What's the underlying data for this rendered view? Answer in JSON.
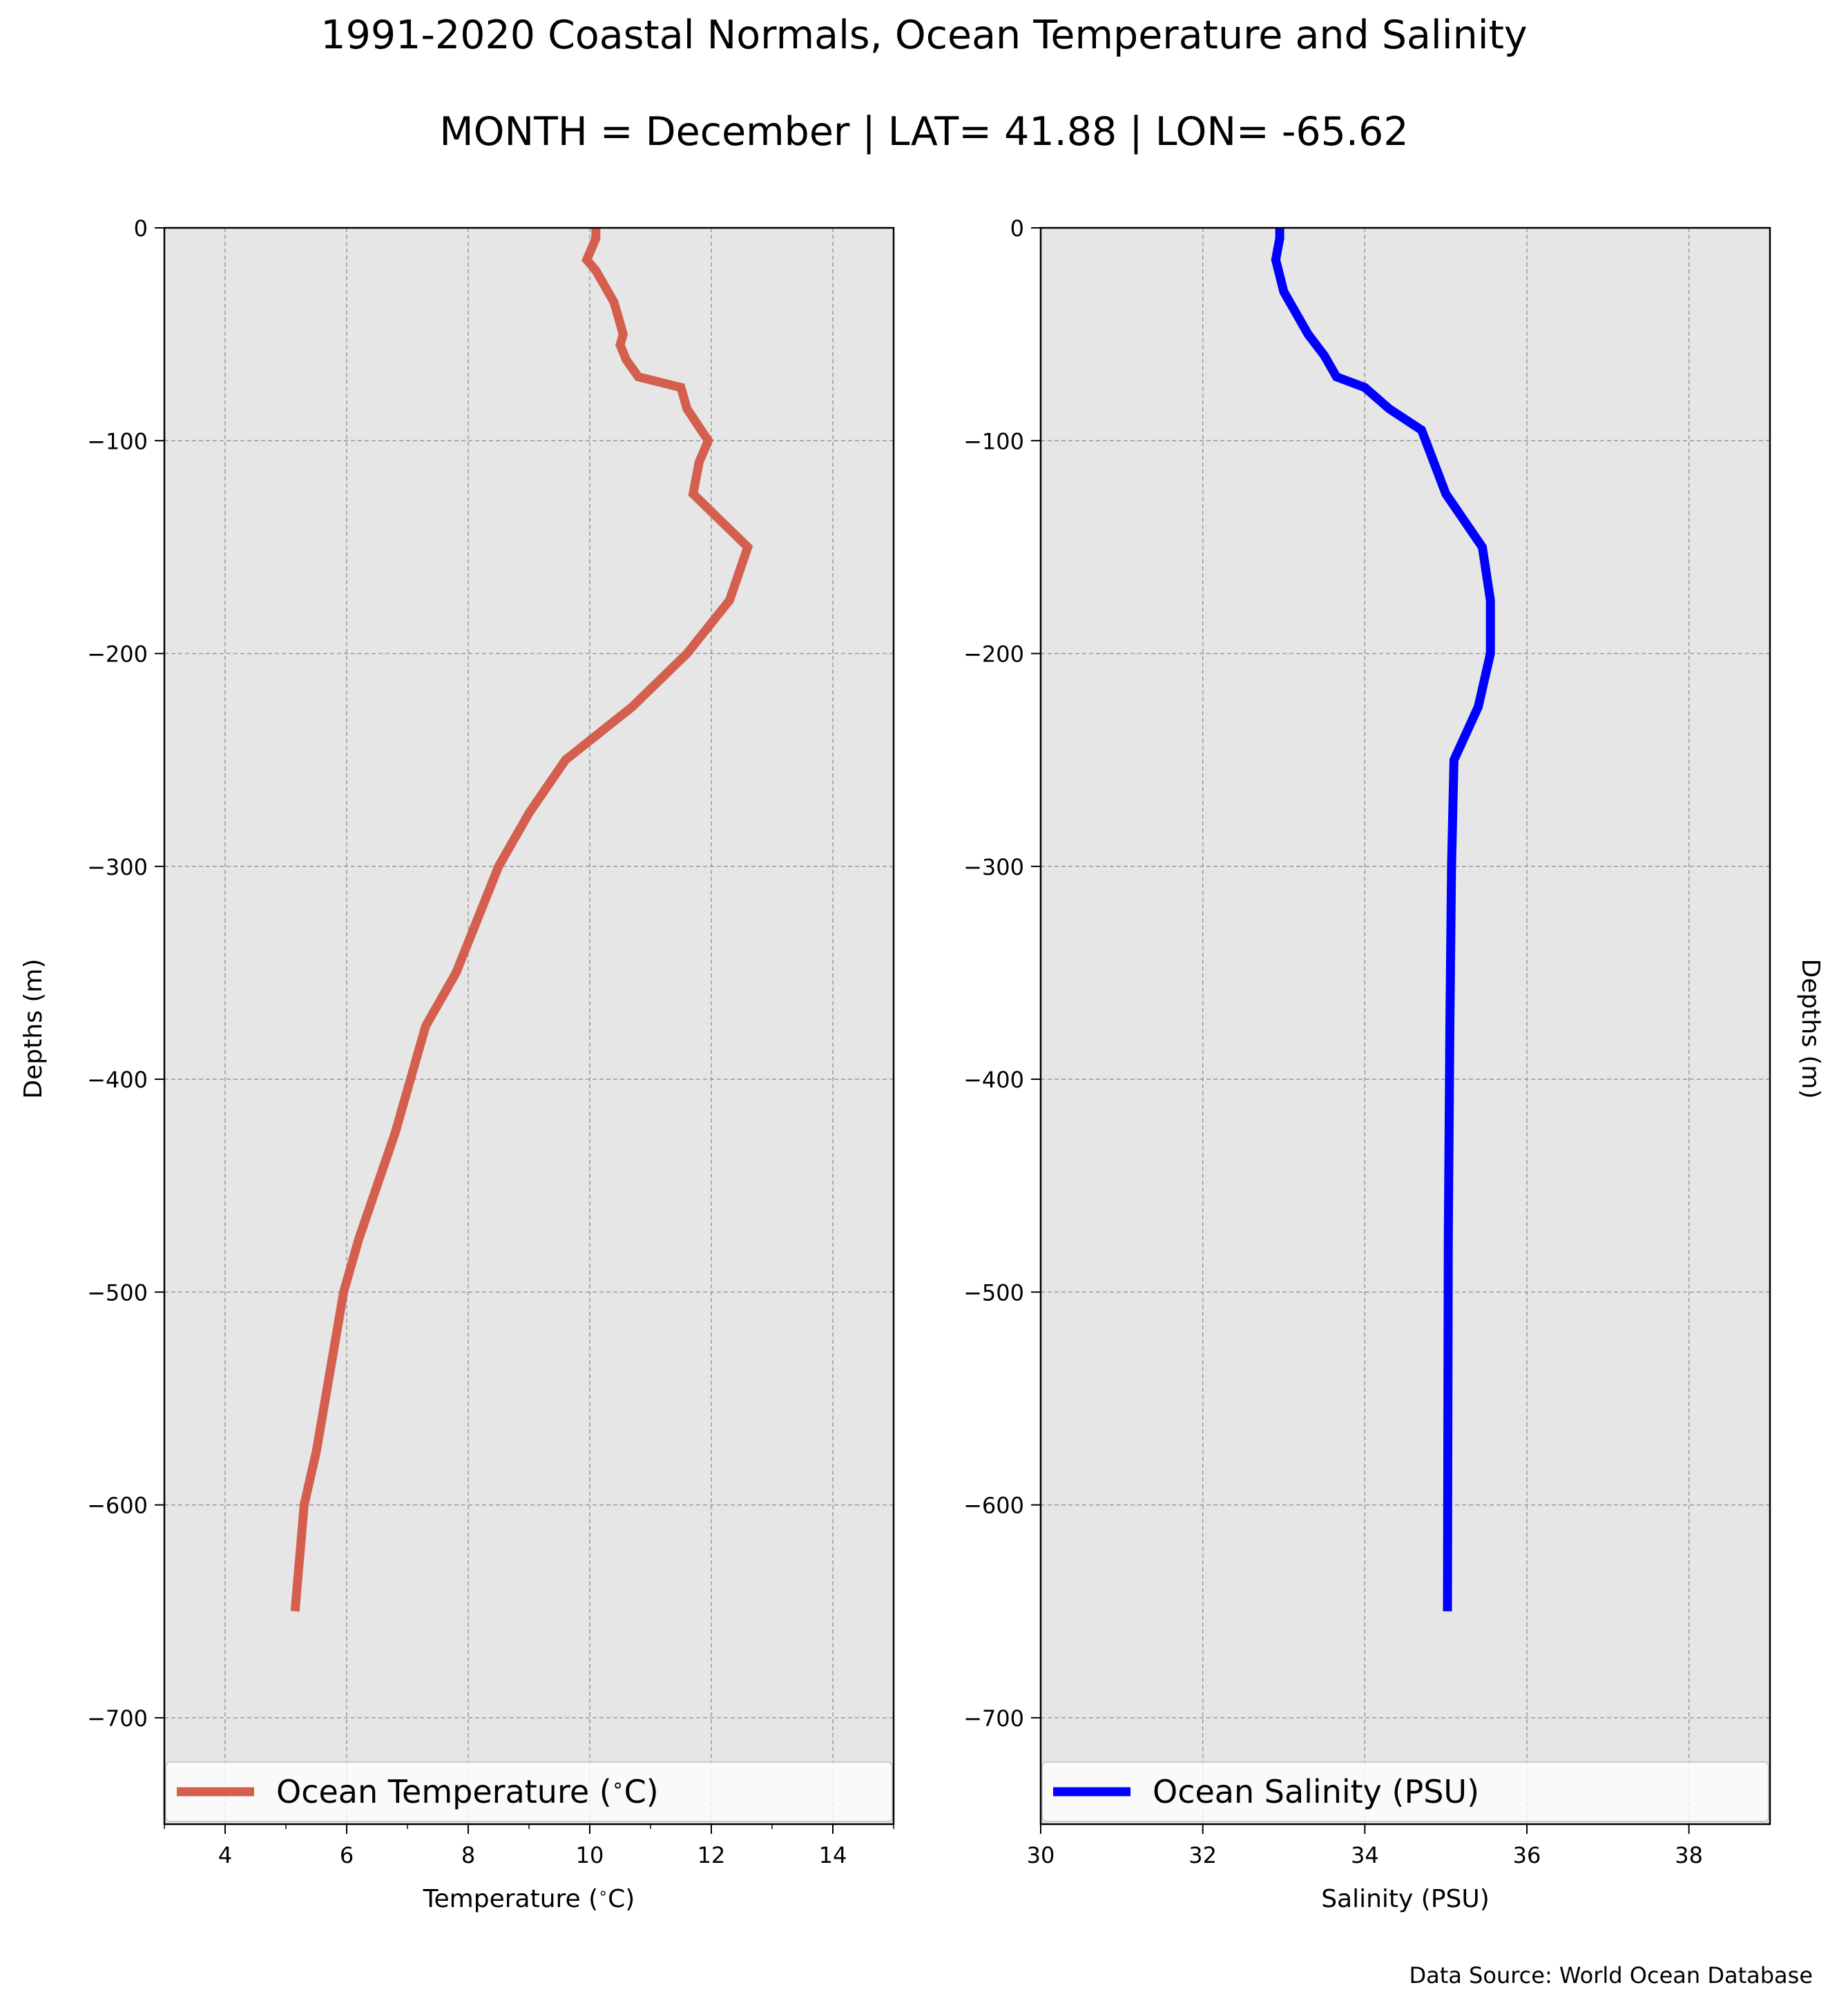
{
  "figure": {
    "title": "1991-2020 Coastal Normals, Ocean Temperature and Salinity",
    "subtitle": "MONTH = December | LAT= 41.88 | LON= -65.62",
    "source": "Data Source: World Ocean Database",
    "background": "#ffffff",
    "plot_background": "#e6e6e6"
  },
  "chart_data": [
    {
      "type": "line",
      "title": "",
      "xlabel": "Temperature ($^\\circ$C)",
      "ylabel": "Depths (m)",
      "xlim": [
        3,
        15
      ],
      "ylim": [
        -750,
        0
      ],
      "xticks": [
        4,
        6,
        8,
        10,
        12,
        14
      ],
      "yticks": [
        0,
        -100,
        -200,
        -300,
        -400,
        -500,
        -600,
        -700
      ],
      "grid": true,
      "legend_position": "bottom",
      "series": [
        {
          "name": "Ocean Temperature ($^\\circ$C)",
          "color": "#d45f4e",
          "x": [
            10.1,
            10.1,
            9.95,
            10.1,
            10.4,
            10.55,
            10.5,
            10.6,
            10.8,
            11.5,
            11.6,
            11.95,
            11.8,
            11.7,
            12.6,
            12.3,
            11.6,
            10.7,
            9.6,
            9.0,
            8.5,
            7.8,
            7.3,
            6.8,
            6.5,
            6.2,
            5.95,
            5.65,
            5.5,
            5.3,
            5.15
          ],
          "y": [
            0,
            -5,
            -15,
            -20,
            -35,
            -50,
            -55,
            -62,
            -70,
            -75,
            -85,
            -100,
            -110,
            -125,
            -150,
            -175,
            -200,
            -225,
            -250,
            -275,
            -300,
            -350,
            -375,
            -425,
            -450,
            -475,
            -500,
            -550,
            -575,
            -600,
            -650
          ]
        }
      ]
    },
    {
      "type": "line",
      "title": "",
      "xlabel": "Salinity (PSU)",
      "ylabel": "Depths (m)",
      "xlim": [
        30,
        39
      ],
      "ylim": [
        -750,
        0
      ],
      "xticks": [
        30,
        32,
        34,
        36,
        38
      ],
      "yticks": [
        0,
        -100,
        -200,
        -300,
        -400,
        -500,
        -600,
        -700
      ],
      "grid": true,
      "legend_position": "bottom",
      "series": [
        {
          "name": "Ocean Salinity (PSU)",
          "color": "#0000ff",
          "x": [
            32.95,
            32.95,
            32.9,
            33.0,
            33.3,
            33.5,
            33.65,
            34.0,
            34.3,
            34.7,
            35.0,
            35.45,
            35.55,
            35.55,
            35.4,
            35.1,
            35.07,
            35.05,
            35.03,
            35.02
          ],
          "y": [
            0,
            -5,
            -15,
            -30,
            -50,
            -60,
            -70,
            -75,
            -85,
            -95,
            -125,
            -150,
            -175,
            -200,
            -225,
            -250,
            -300,
            -375,
            -475,
            -650
          ]
        }
      ]
    }
  ]
}
